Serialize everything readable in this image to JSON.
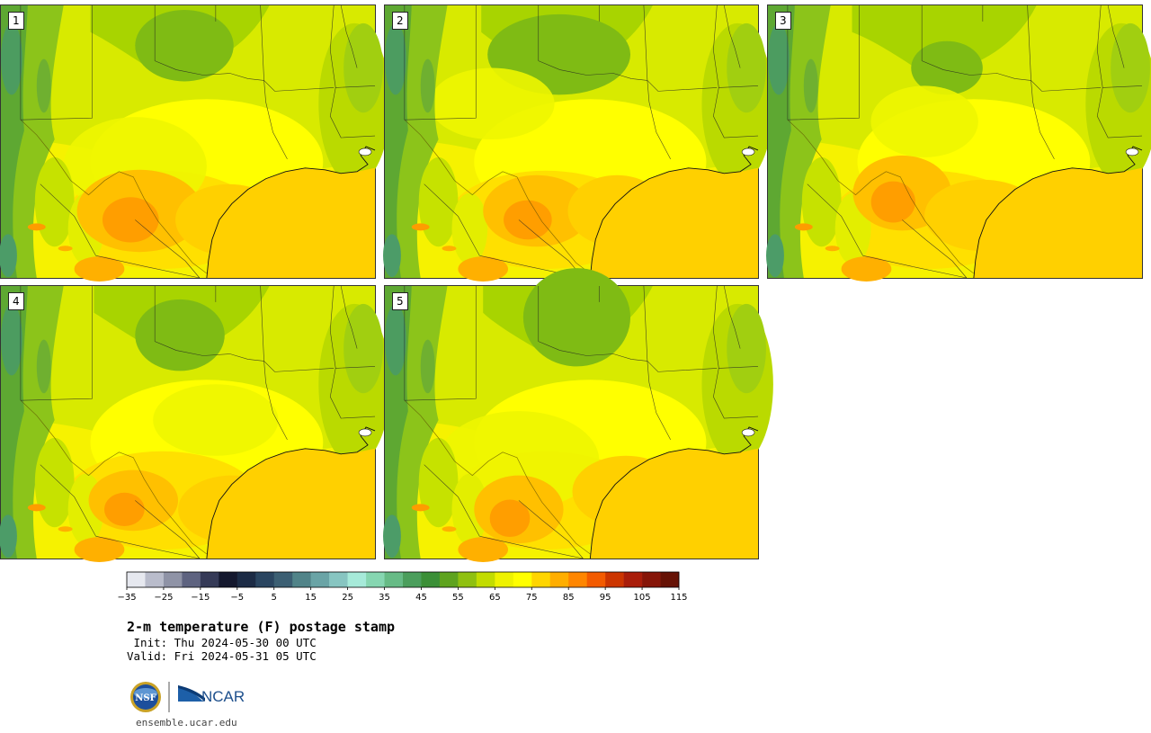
{
  "panels": [
    {
      "label": "1",
      "variant": 0
    },
    {
      "label": "2",
      "variant": 1
    },
    {
      "label": "3",
      "variant": 2
    },
    {
      "label": "4",
      "variant": 3
    },
    {
      "label": "5",
      "variant": 4
    }
  ],
  "colorbar": {
    "min": -35,
    "max": 120,
    "step": 5,
    "tick_labels": [
      "−35",
      "−25",
      "−15",
      "−5",
      "5",
      "15",
      "25",
      "35",
      "45",
      "55",
      "65",
      "75",
      "85",
      "95",
      "105",
      "115"
    ],
    "colors": [
      "#e6e8ef",
      "#b9bccb",
      "#8f93a6",
      "#5e6380",
      "#353a57",
      "#14182e",
      "#1c2b45",
      "#2a4560",
      "#3c5f73",
      "#518489",
      "#6aa4a6",
      "#87c5c1",
      "#a6ead9",
      "#86d6b1",
      "#67bb86",
      "#4b9e5c",
      "#3b8f37",
      "#5ea31e",
      "#8fc010",
      "#c2dc00",
      "#eef200",
      "#ffff00",
      "#ffd500",
      "#ffae00",
      "#ff8600",
      "#f35b00",
      "#cc3500",
      "#a91d0a",
      "#861508",
      "#661205"
    ]
  },
  "title": "2-m temperature (F) postage stamp",
  "init": " Init: Thu 2024-05-30 00 UTC",
  "valid": "Valid: Fri 2024-05-31 05 UTC",
  "logos": {
    "nsf": "NSF",
    "ncar": "NCAR"
  },
  "site": "ensemble.ucar.edu"
}
